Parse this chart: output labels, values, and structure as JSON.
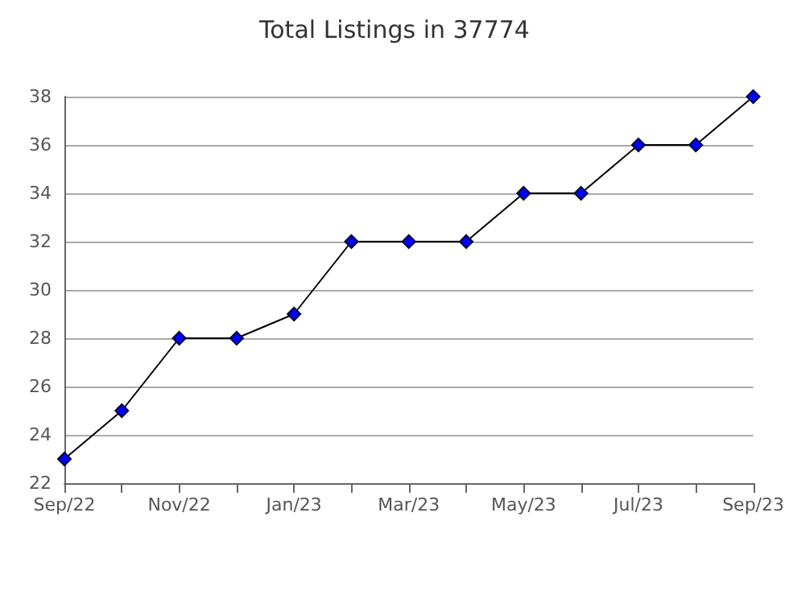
{
  "chart_data": {
    "type": "line",
    "title": "Total Listings in 37774",
    "categories": [
      "Sep/22",
      null,
      "Nov/22",
      null,
      "Jan/23",
      null,
      "Mar/23",
      null,
      "May/23",
      null,
      "Jul/23",
      null,
      "Sep/23"
    ],
    "series": [
      {
        "color": "#0000ff",
        "values": [
          23,
          25,
          28,
          28,
          29,
          32,
          32,
          32,
          34,
          34,
          36,
          36,
          38
        ]
      }
    ],
    "ylim": [
      22,
      38
    ],
    "yticks": [
      22,
      24,
      26,
      28,
      30,
      32,
      34,
      36,
      38
    ],
    "grid": "y",
    "marker": "diamond",
    "line_style": "solid"
  }
}
